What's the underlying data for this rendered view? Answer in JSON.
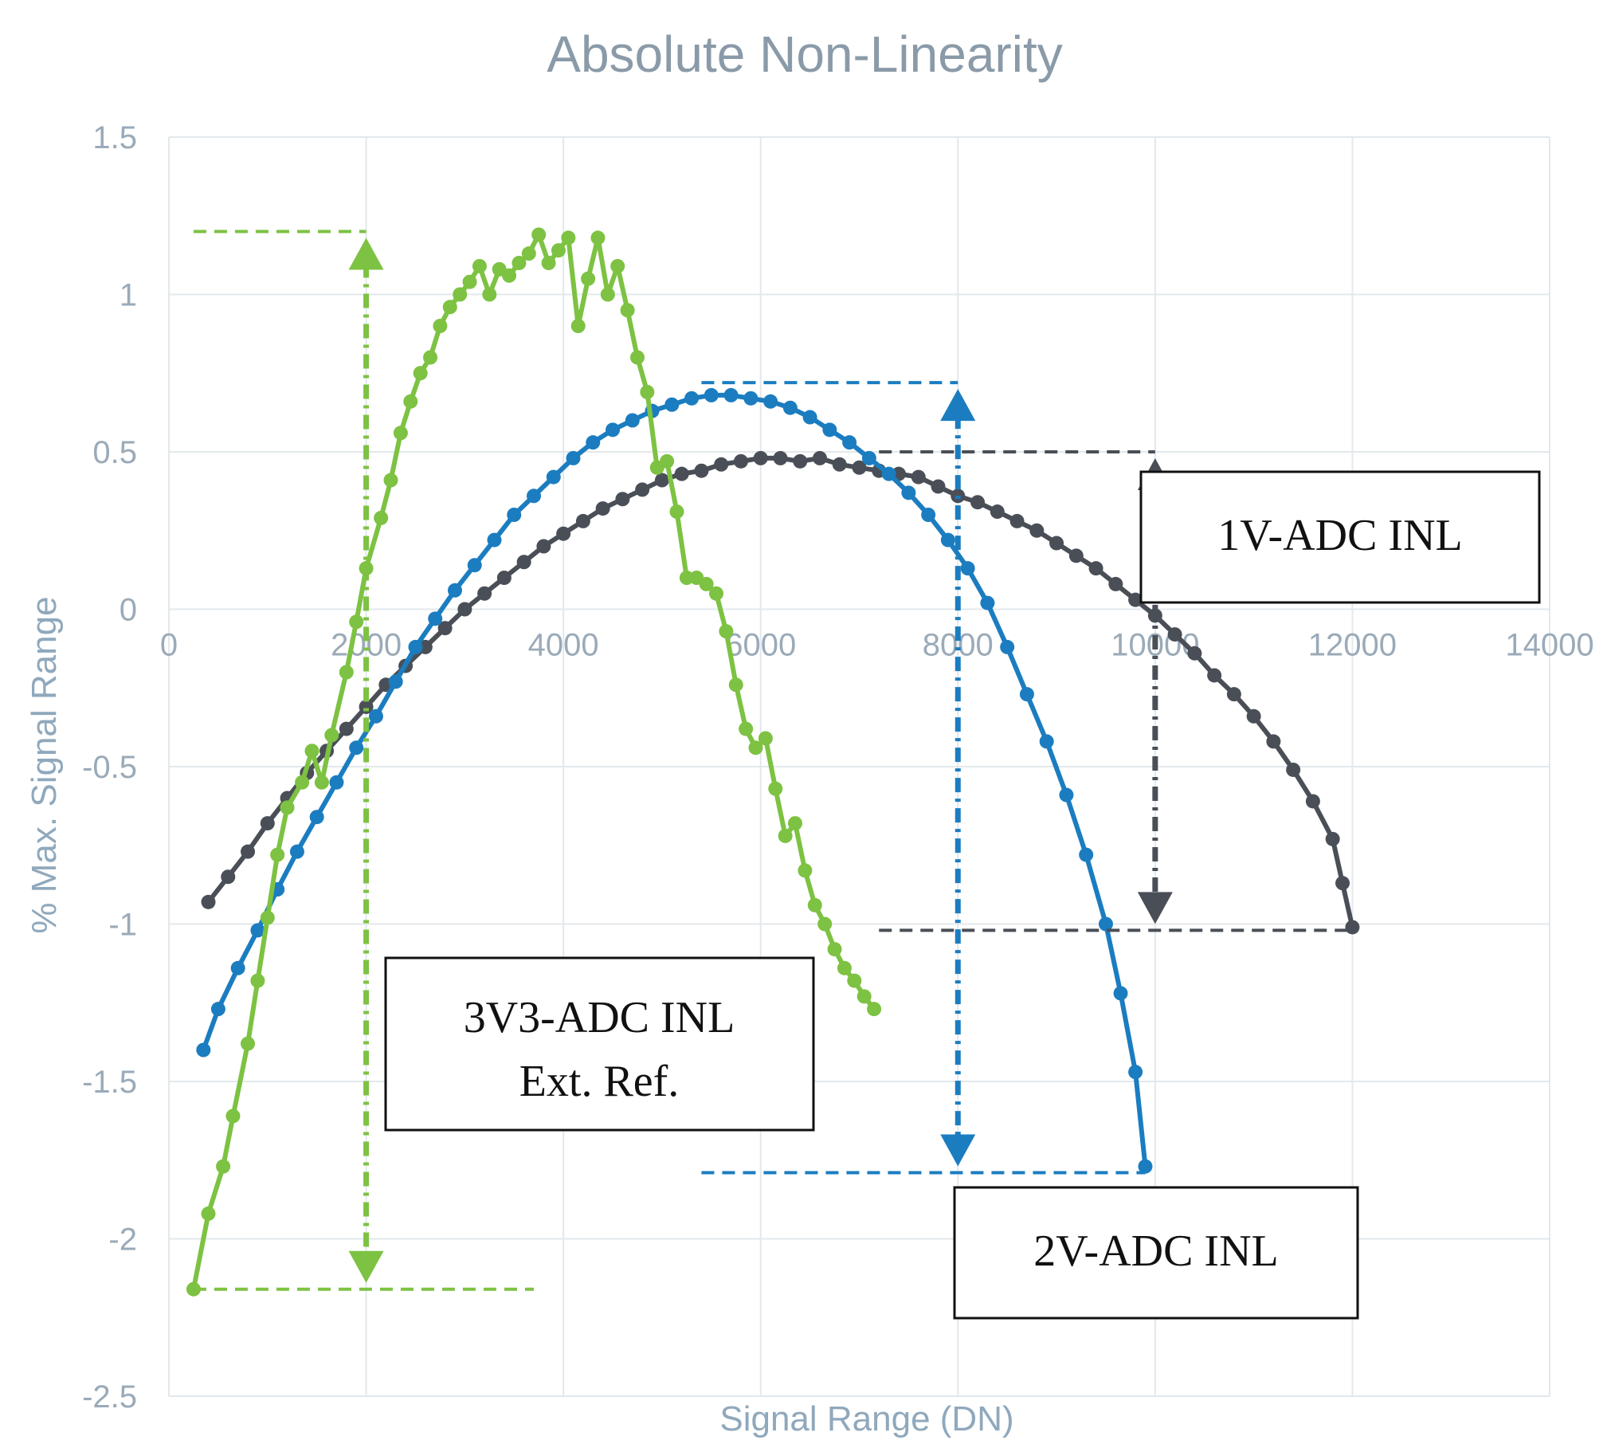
{
  "chart_data": {
    "type": "line",
    "title": "Absolute Non-Linearity",
    "xlabel": "Signal Range (DN)",
    "ylabel": "% Max. Signal Range",
    "xlim": [
      0,
      14000
    ],
    "ylim": [
      -2.5,
      1.5
    ],
    "x_ticks": [
      0,
      2000,
      4000,
      6000,
      8000,
      10000,
      12000,
      14000
    ],
    "x_tick_labels": [
      "0",
      "2000",
      "4000",
      "6000",
      "8000",
      "10000",
      "12000",
      "14000"
    ],
    "y_ticks": [
      1.5,
      1,
      0.5,
      0,
      -0.5,
      -1,
      -1.5,
      -2,
      -2.5
    ],
    "y_tick_labels": [
      "1.5",
      "1",
      "0.5",
      "0",
      "-0.5",
      "-1",
      "-1.5",
      "-2",
      "-2.5"
    ],
    "grid": true,
    "series": [
      {
        "color": "#4a4f57",
        "points": [
          [
            400,
            -0.93
          ],
          [
            600,
            -0.85
          ],
          [
            800,
            -0.77
          ],
          [
            1000,
            -0.68
          ],
          [
            1200,
            -0.6
          ],
          [
            1400,
            -0.52
          ],
          [
            1600,
            -0.45
          ],
          [
            1800,
            -0.38
          ],
          [
            2000,
            -0.31
          ],
          [
            2200,
            -0.24
          ],
          [
            2400,
            -0.18
          ],
          [
            2600,
            -0.12
          ],
          [
            2800,
            -0.06
          ],
          [
            3000,
            0.0
          ],
          [
            3200,
            0.05
          ],
          [
            3400,
            0.1
          ],
          [
            3600,
            0.15
          ],
          [
            3800,
            0.2
          ],
          [
            4000,
            0.24
          ],
          [
            4200,
            0.28
          ],
          [
            4400,
            0.32
          ],
          [
            4600,
            0.35
          ],
          [
            4800,
            0.38
          ],
          [
            5000,
            0.41
          ],
          [
            5200,
            0.43
          ],
          [
            5400,
            0.44
          ],
          [
            5600,
            0.46
          ],
          [
            5800,
            0.47
          ],
          [
            6000,
            0.48
          ],
          [
            6200,
            0.48
          ],
          [
            6400,
            0.47
          ],
          [
            6600,
            0.48
          ],
          [
            6800,
            0.46
          ],
          [
            7000,
            0.45
          ],
          [
            7200,
            0.44
          ],
          [
            7400,
            0.43
          ],
          [
            7600,
            0.42
          ],
          [
            7800,
            0.39
          ],
          [
            8000,
            0.36
          ],
          [
            8200,
            0.34
          ],
          [
            8400,
            0.31
          ],
          [
            8600,
            0.28
          ],
          [
            8800,
            0.25
          ],
          [
            9000,
            0.21
          ],
          [
            9200,
            0.17
          ],
          [
            9400,
            0.13
          ],
          [
            9600,
            0.08
          ],
          [
            9800,
            0.03
          ],
          [
            10000,
            -0.02
          ],
          [
            10200,
            -0.08
          ],
          [
            10400,
            -0.14
          ],
          [
            10600,
            -0.21
          ],
          [
            10800,
            -0.27
          ],
          [
            11000,
            -0.34
          ],
          [
            11200,
            -0.42
          ],
          [
            11400,
            -0.51
          ],
          [
            11600,
            -0.61
          ],
          [
            11800,
            -0.73
          ],
          [
            11900,
            -0.87
          ],
          [
            12000,
            -1.01
          ]
        ]
      },
      {
        "color": "#1b7dc0",
        "points": [
          [
            350,
            -1.4
          ],
          [
            500,
            -1.27
          ],
          [
            700,
            -1.14
          ],
          [
            900,
            -1.02
          ],
          [
            1100,
            -0.89
          ],
          [
            1300,
            -0.77
          ],
          [
            1500,
            -0.66
          ],
          [
            1700,
            -0.55
          ],
          [
            1900,
            -0.44
          ],
          [
            2100,
            -0.34
          ],
          [
            2300,
            -0.23
          ],
          [
            2500,
            -0.12
          ],
          [
            2700,
            -0.03
          ],
          [
            2900,
            0.06
          ],
          [
            3100,
            0.14
          ],
          [
            3300,
            0.22
          ],
          [
            3500,
            0.3
          ],
          [
            3700,
            0.36
          ],
          [
            3900,
            0.42
          ],
          [
            4100,
            0.48
          ],
          [
            4300,
            0.53
          ],
          [
            4500,
            0.57
          ],
          [
            4700,
            0.6
          ],
          [
            4900,
            0.63
          ],
          [
            5100,
            0.65
          ],
          [
            5300,
            0.67
          ],
          [
            5500,
            0.68
          ],
          [
            5700,
            0.68
          ],
          [
            5900,
            0.67
          ],
          [
            6100,
            0.66
          ],
          [
            6300,
            0.64
          ],
          [
            6500,
            0.61
          ],
          [
            6700,
            0.57
          ],
          [
            6900,
            0.53
          ],
          [
            7100,
            0.48
          ],
          [
            7300,
            0.43
          ],
          [
            7500,
            0.37
          ],
          [
            7700,
            0.3
          ],
          [
            7900,
            0.22
          ],
          [
            8100,
            0.13
          ],
          [
            8300,
            0.02
          ],
          [
            8500,
            -0.12
          ],
          [
            8700,
            -0.27
          ],
          [
            8900,
            -0.42
          ],
          [
            9100,
            -0.59
          ],
          [
            9300,
            -0.78
          ],
          [
            9500,
            -1.0
          ],
          [
            9650,
            -1.22
          ],
          [
            9800,
            -1.47
          ],
          [
            9900,
            -1.77
          ]
        ]
      },
      {
        "color": "#7dc242",
        "points": [
          [
            250,
            -2.16
          ],
          [
            400,
            -1.92
          ],
          [
            550,
            -1.77
          ],
          [
            650,
            -1.61
          ],
          [
            800,
            -1.38
          ],
          [
            900,
            -1.18
          ],
          [
            1000,
            -0.98
          ],
          [
            1100,
            -0.78
          ],
          [
            1200,
            -0.63
          ],
          [
            1350,
            -0.55
          ],
          [
            1450,
            -0.45
          ],
          [
            1550,
            -0.55
          ],
          [
            1650,
            -0.4
          ],
          [
            1800,
            -0.2
          ],
          [
            1900,
            -0.04
          ],
          [
            2000,
            0.13
          ],
          [
            2150,
            0.29
          ],
          [
            2250,
            0.41
          ],
          [
            2350,
            0.56
          ],
          [
            2450,
            0.66
          ],
          [
            2550,
            0.75
          ],
          [
            2650,
            0.8
          ],
          [
            2750,
            0.9
          ],
          [
            2850,
            0.96
          ],
          [
            2950,
            1.0
          ],
          [
            3050,
            1.04
          ],
          [
            3150,
            1.09
          ],
          [
            3250,
            1.0
          ],
          [
            3350,
            1.08
          ],
          [
            3450,
            1.06
          ],
          [
            3550,
            1.1
          ],
          [
            3650,
            1.13
          ],
          [
            3750,
            1.19
          ],
          [
            3850,
            1.1
          ],
          [
            3950,
            1.14
          ],
          [
            4050,
            1.18
          ],
          [
            4150,
            0.9
          ],
          [
            4250,
            1.05
          ],
          [
            4350,
            1.18
          ],
          [
            4450,
            1.0
          ],
          [
            4550,
            1.09
          ],
          [
            4650,
            0.95
          ],
          [
            4750,
            0.8
          ],
          [
            4850,
            0.69
          ],
          [
            4950,
            0.45
          ],
          [
            5050,
            0.47
          ],
          [
            5150,
            0.31
          ],
          [
            5250,
            0.1
          ],
          [
            5350,
            0.1
          ],
          [
            5450,
            0.08
          ],
          [
            5550,
            0.05
          ],
          [
            5650,
            -0.07
          ],
          [
            5750,
            -0.24
          ],
          [
            5850,
            -0.38
          ],
          [
            5950,
            -0.44
          ],
          [
            6050,
            -0.41
          ],
          [
            6150,
            -0.57
          ],
          [
            6250,
            -0.72
          ],
          [
            6350,
            -0.68
          ],
          [
            6450,
            -0.83
          ],
          [
            6550,
            -0.94
          ],
          [
            6650,
            -1.0
          ],
          [
            6750,
            -1.08
          ],
          [
            6850,
            -1.14
          ],
          [
            6950,
            -1.18
          ],
          [
            7050,
            -1.23
          ],
          [
            7150,
            -1.27
          ]
        ]
      }
    ],
    "annotations": [
      {
        "lines": [
          "1V-ADC INL"
        ],
        "color": "#4a4f57",
        "range_x": 10000,
        "from": 0.5,
        "to": -1.02,
        "h_from": 7200,
        "h_to": 12000
      },
      {
        "lines": [
          "2V-ADC INL"
        ],
        "color": "#1b7dc0",
        "range_x": 8000,
        "from": 0.72,
        "to": -1.79,
        "h_from": 5400,
        "h_to": 9900
      },
      {
        "lines": [
          "3V3-ADC INL",
          "Ext. Ref."
        ],
        "color": "#7dc242",
        "range_x": 2000,
        "from": 1.2,
        "to": -2.16,
        "h_from": 250,
        "h_to": 3700
      }
    ]
  }
}
